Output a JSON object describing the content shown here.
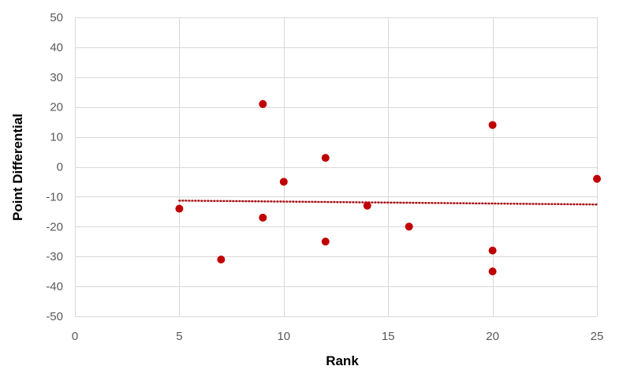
{
  "chart_data": {
    "type": "scatter",
    "xlabel": "Rank",
    "ylabel": "Point Differential",
    "xlim": [
      0,
      25
    ],
    "ylim": [
      -50,
      50
    ],
    "x_ticks": [
      0,
      5,
      10,
      15,
      20,
      25
    ],
    "y_ticks": [
      50,
      40,
      30,
      20,
      10,
      0,
      -10,
      -20,
      -30,
      -40,
      -50
    ],
    "grid": true,
    "legend": "none",
    "series": [
      {
        "points": [
          {
            "x": 5,
            "y": -14
          },
          {
            "x": 7,
            "y": -31
          },
          {
            "x": 9,
            "y": 21
          },
          {
            "x": 9,
            "y": -17
          },
          {
            "x": 10,
            "y": -5
          },
          {
            "x": 12,
            "y": 3
          },
          {
            "x": 12,
            "y": -25
          },
          {
            "x": 14,
            "y": -13
          },
          {
            "x": 16,
            "y": -20
          },
          {
            "x": 20,
            "y": 14
          },
          {
            "x": 20,
            "y": -28
          },
          {
            "x": 20,
            "y": -35
          },
          {
            "x": 25,
            "y": -4
          }
        ],
        "color": "#c00000"
      }
    ],
    "trendline": {
      "type": "linear",
      "from": {
        "x": 5,
        "y": -11.3
      },
      "to": {
        "x": 25,
        "y": -12.6
      },
      "color": "#a50f15",
      "style": "dotted"
    },
    "colors": {
      "grid": "#d9d9d9",
      "tick_text": "#595959",
      "axis_title": "#000000"
    }
  }
}
